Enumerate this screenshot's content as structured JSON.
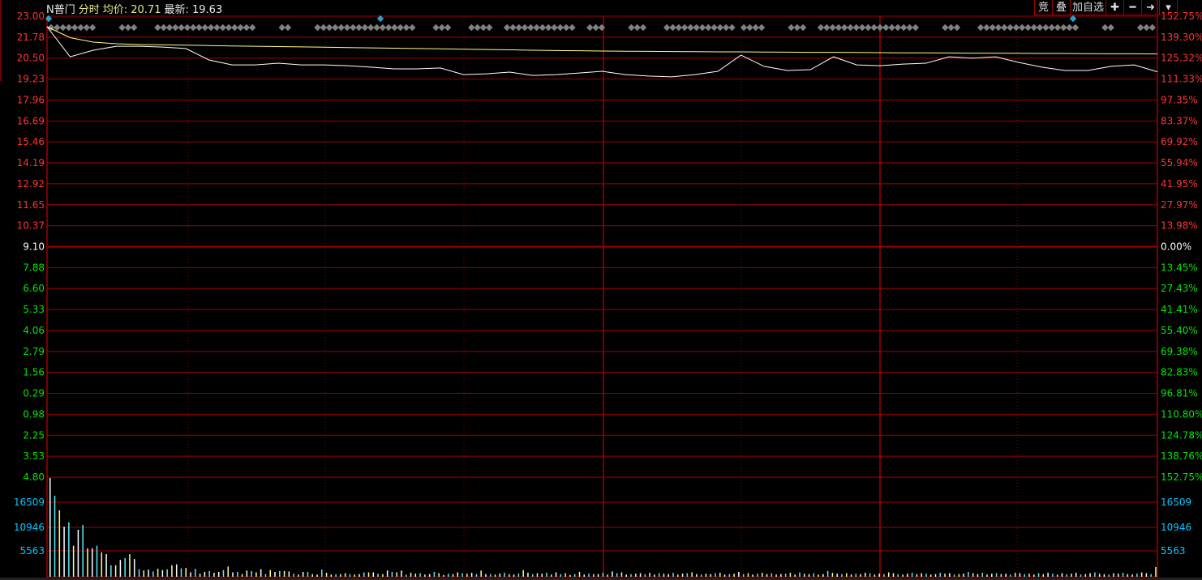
{
  "header": {
    "name": "N普门",
    "mode": "分时",
    "avg_label": "均价: 20.71",
    "last_label": "最新: 19.63"
  },
  "toolbar": [
    {
      "label": "竞",
      "icon": "bid-icon"
    },
    {
      "label": "叠",
      "icon": "overlay-icon"
    },
    {
      "label": "加自选",
      "icon": "add-watchlist"
    },
    {
      "label": "✚",
      "icon": "plus-icon"
    },
    {
      "label": "━",
      "icon": "minus-icon"
    },
    {
      "label": "➜",
      "icon": "jump-end-icon"
    },
    {
      "label": "▾",
      "icon": "dropdown-icon"
    }
  ],
  "colors": {
    "price": "#ffffff",
    "avg": "#ffff80",
    "grid": "#a00000",
    "up": "#ff3232",
    "down": "#00e600",
    "volume_axis": "#00c8ff",
    "marker": "#808080",
    "marker_blue": "#2a9fd6"
  },
  "chart_data": [
    {
      "type": "line",
      "price_ticks_left": [
        {
          "v": "23.00",
          "c": "up"
        },
        {
          "v": "21.78",
          "c": "up"
        },
        {
          "v": "20.50",
          "c": "up"
        },
        {
          "v": "19.23",
          "c": "up"
        },
        {
          "v": "17.96",
          "c": "up"
        },
        {
          "v": "16.69",
          "c": "up"
        },
        {
          "v": "15.46",
          "c": "up"
        },
        {
          "v": "14.19",
          "c": "up"
        },
        {
          "v": "12.92",
          "c": "up"
        },
        {
          "v": "11.65",
          "c": "up"
        },
        {
          "v": "10.37",
          "c": "up"
        },
        {
          "v": "9.10",
          "c": "flat"
        },
        {
          "v": "7.88",
          "c": "down"
        },
        {
          "v": "6.60",
          "c": "down"
        },
        {
          "v": "5.33",
          "c": "down"
        },
        {
          "v": "4.06",
          "c": "down"
        },
        {
          "v": "2.79",
          "c": "down"
        },
        {
          "v": "1.56",
          "c": "down"
        },
        {
          "v": "0.29",
          "c": "down"
        },
        {
          "v": "0.98",
          "c": "down"
        },
        {
          "v": "2.25",
          "c": "down"
        },
        {
          "v": "3.53",
          "c": "down"
        },
        {
          "v": "4.80",
          "c": "down"
        }
      ],
      "pct_ticks_right": [
        {
          "v": "152.75%",
          "c": "up"
        },
        {
          "v": "139.30%",
          "c": "up"
        },
        {
          "v": "125.32%",
          "c": "up"
        },
        {
          "v": "111.33%",
          "c": "up"
        },
        {
          "v": "97.35%",
          "c": "up"
        },
        {
          "v": "83.37%",
          "c": "up"
        },
        {
          "v": "69.92%",
          "c": "up"
        },
        {
          "v": "55.94%",
          "c": "up"
        },
        {
          "v": "41.95%",
          "c": "up"
        },
        {
          "v": "27.97%",
          "c": "up"
        },
        {
          "v": "13.98%",
          "c": "up"
        },
        {
          "v": "0.00%",
          "c": "flat"
        },
        {
          "v": "13.45%",
          "c": "down"
        },
        {
          "v": "27.43%",
          "c": "down"
        },
        {
          "v": "41.41%",
          "c": "down"
        },
        {
          "v": "55.40%",
          "c": "down"
        },
        {
          "v": "69.38%",
          "c": "down"
        },
        {
          "v": "82.83%",
          "c": "down"
        },
        {
          "v": "96.81%",
          "c": "down"
        },
        {
          "v": "110.80%",
          "c": "down"
        },
        {
          "v": "124.78%",
          "c": "down"
        },
        {
          "v": "138.76%",
          "c": "down"
        },
        {
          "v": "152.75%",
          "c": "down"
        }
      ],
      "ylim": [
        4.8,
        23.0
      ],
      "x_step_minutes": 5,
      "price": [
        22.36,
        20.54,
        20.94,
        21.18,
        21.18,
        21.13,
        21.04,
        20.35,
        20.05,
        20.05,
        20.15,
        20.05,
        20.05,
        20.0,
        19.91,
        19.81,
        19.81,
        19.86,
        19.46,
        19.51,
        19.61,
        19.41,
        19.46,
        19.56,
        19.66,
        19.46,
        19.37,
        19.32,
        19.46,
        19.66,
        20.64,
        19.96,
        19.71,
        19.76,
        20.54,
        20.05,
        20.0,
        20.1,
        20.15,
        20.54,
        20.45,
        20.54,
        20.2,
        19.91,
        19.71,
        19.71,
        19.96,
        20.05,
        19.63
      ],
      "avg": [
        22.36,
        21.7,
        21.43,
        21.33,
        21.28,
        21.26,
        21.24,
        21.22,
        21.2,
        21.18,
        21.16,
        21.14,
        21.12,
        21.1,
        21.08,
        21.06,
        21.04,
        21.02,
        21.0,
        20.98,
        20.96,
        20.94,
        20.92,
        20.91,
        20.89,
        20.88,
        20.87,
        20.86,
        20.85,
        20.84,
        20.84,
        20.83,
        20.82,
        20.81,
        20.81,
        20.8,
        20.79,
        20.78,
        20.78,
        20.77,
        20.76,
        20.76,
        20.75,
        20.74,
        20.74,
        20.73,
        20.72,
        20.72,
        20.71
      ]
    },
    {
      "type": "bar",
      "volume_ticks": [
        "16509",
        "10946",
        "5563"
      ],
      "ylim": [
        0,
        22300
      ],
      "volume": [
        22300,
        18300,
        15000,
        11300,
        12300,
        7000,
        10600,
        11700,
        6400,
        6400,
        7000,
        5500,
        5100,
        2600,
        2600,
        3800,
        4200,
        5100,
        4000,
        1700,
        1400,
        1600,
        1200,
        1800,
        1500,
        1700,
        2600,
        2800,
        1900,
        2000,
        1000,
        1800,
        700,
        1100,
        1300,
        900,
        1100,
        1500,
        2300,
        1000,
        1100,
        600,
        1400,
        1300,
        1000,
        1700,
        600,
        1500,
        1100,
        1300,
        1300,
        1200,
        700,
        500,
        1100,
        1100,
        600,
        500,
        1600,
        900,
        500,
        600,
        600,
        800,
        600,
        500,
        600,
        1000,
        1000,
        1000,
        700,
        600,
        1400,
        1100,
        1000,
        1400,
        500,
        900,
        700,
        800,
        500,
        600,
        1100,
        800,
        400,
        700,
        600,
        1000,
        800,
        700,
        900,
        600,
        1400,
        600,
        600,
        500,
        700,
        900,
        600,
        500,
        700,
        1500,
        900,
        600,
        800,
        700,
        900,
        500,
        1000,
        600,
        800,
        400,
        600,
        1100,
        500,
        700,
        600,
        600,
        900,
        500,
        1200,
        800,
        1000,
        500,
        600,
        700,
        800,
        600,
        900,
        500,
        800,
        700,
        600,
        900,
        500,
        700,
        800,
        1000,
        600,
        500,
        700,
        600,
        800,
        900,
        500,
        600,
        700,
        1100,
        600,
        800,
        500,
        700,
        900,
        600,
        800,
        500,
        600,
        700,
        900,
        500,
        1000,
        700,
        600,
        800,
        500,
        600,
        1300,
        900,
        700,
        600,
        800,
        500,
        700,
        600,
        900,
        800,
        500,
        700,
        600,
        1000,
        800,
        600,
        500,
        700,
        900,
        600,
        800,
        700,
        500,
        600,
        900,
        700,
        800,
        500,
        600,
        700,
        1100,
        800,
        600,
        900,
        500,
        700,
        800,
        600,
        700,
        500,
        900,
        800,
        600,
        700,
        500,
        800,
        600,
        900,
        700,
        500,
        800,
        600,
        700,
        900,
        500,
        600,
        800,
        1000,
        700,
        600,
        500,
        800,
        700,
        900,
        600,
        500,
        700,
        1000,
        800,
        600,
        2200
      ]
    }
  ]
}
